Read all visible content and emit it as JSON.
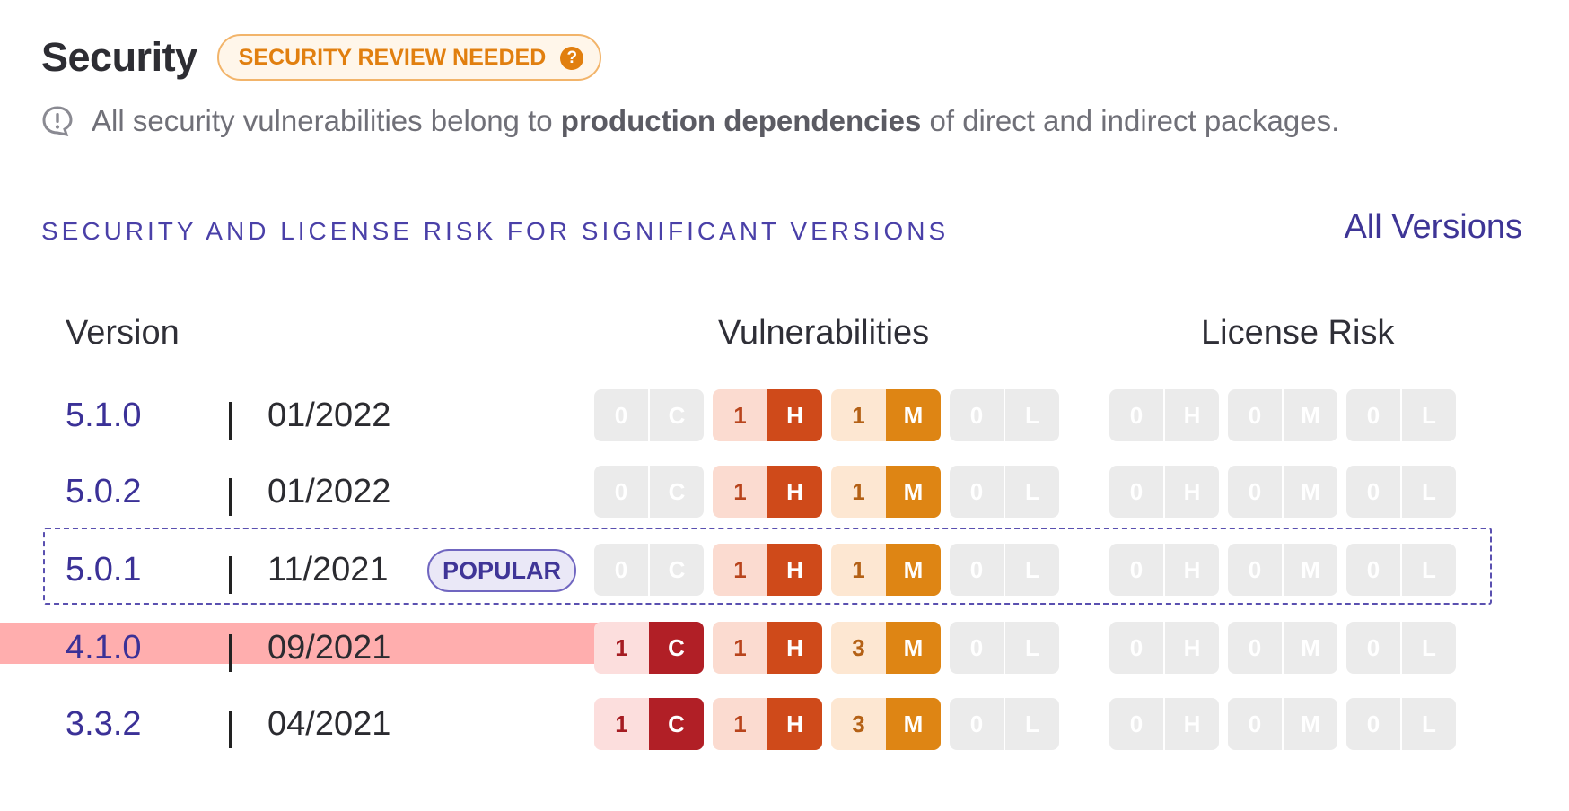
{
  "header": {
    "title": "Security",
    "badge": "SECURITY REVIEW NEEDED",
    "badge_icon": "?"
  },
  "note": {
    "pre": "All security vulnerabilities belong to",
    "bold": "production dependencies",
    "post": "of direct and indirect packages."
  },
  "section": {
    "title": "SECURITY AND LICENSE RISK FOR SIGNIFICANT VERSIONS",
    "all_versions": "All Versions"
  },
  "columns": {
    "version": "Version",
    "vulnerabilities": "Vulnerabilities",
    "license": "License Risk"
  },
  "colors": {
    "accent": "#3b3197",
    "critical": "#b11f26",
    "high": "#cf4a1a",
    "medium": "#de8514",
    "neutral": "#ebebeb",
    "warning": "#e17f0f",
    "highlight": "#ff6b6b"
  },
  "rows": [
    {
      "version": "5.1.0",
      "date": "01/2022",
      "tag": "",
      "vuln": {
        "c": {
          "n": "0",
          "l": "C"
        },
        "h": {
          "n": "1",
          "l": "H"
        },
        "m": {
          "n": "1",
          "l": "M"
        },
        "low": {
          "n": "0",
          "l": "L"
        }
      },
      "license": {
        "h": {
          "n": "0",
          "l": "H"
        },
        "m": {
          "n": "0",
          "l": "M"
        },
        "low": {
          "n": "0",
          "l": "L"
        }
      }
    },
    {
      "version": "5.0.2",
      "date": "01/2022",
      "tag": "",
      "vuln": {
        "c": {
          "n": "0",
          "l": "C"
        },
        "h": {
          "n": "1",
          "l": "H"
        },
        "m": {
          "n": "1",
          "l": "M"
        },
        "low": {
          "n": "0",
          "l": "L"
        }
      },
      "license": {
        "h": {
          "n": "0",
          "l": "H"
        },
        "m": {
          "n": "0",
          "l": "M"
        },
        "low": {
          "n": "0",
          "l": "L"
        }
      }
    },
    {
      "version": "5.0.1",
      "date": "11/2021",
      "tag": "POPULAR",
      "vuln": {
        "c": {
          "n": "0",
          "l": "C"
        },
        "h": {
          "n": "1",
          "l": "H"
        },
        "m": {
          "n": "1",
          "l": "M"
        },
        "low": {
          "n": "0",
          "l": "L"
        }
      },
      "license": {
        "h": {
          "n": "0",
          "l": "H"
        },
        "m": {
          "n": "0",
          "l": "M"
        },
        "low": {
          "n": "0",
          "l": "L"
        }
      }
    },
    {
      "version": "4.1.0",
      "date": "09/2021",
      "tag": "",
      "vuln": {
        "c": {
          "n": "1",
          "l": "C"
        },
        "h": {
          "n": "1",
          "l": "H"
        },
        "m": {
          "n": "3",
          "l": "M"
        },
        "low": {
          "n": "0",
          "l": "L"
        }
      },
      "license": {
        "h": {
          "n": "0",
          "l": "H"
        },
        "m": {
          "n": "0",
          "l": "M"
        },
        "low": {
          "n": "0",
          "l": "L"
        }
      }
    },
    {
      "version": "3.3.2",
      "date": "04/2021",
      "tag": "",
      "vuln": {
        "c": {
          "n": "1",
          "l": "C"
        },
        "h": {
          "n": "1",
          "l": "H"
        },
        "m": {
          "n": "3",
          "l": "M"
        },
        "low": {
          "n": "0",
          "l": "L"
        }
      },
      "license": {
        "h": {
          "n": "0",
          "l": "H"
        },
        "m": {
          "n": "0",
          "l": "M"
        },
        "low": {
          "n": "0",
          "l": "L"
        }
      }
    }
  ]
}
